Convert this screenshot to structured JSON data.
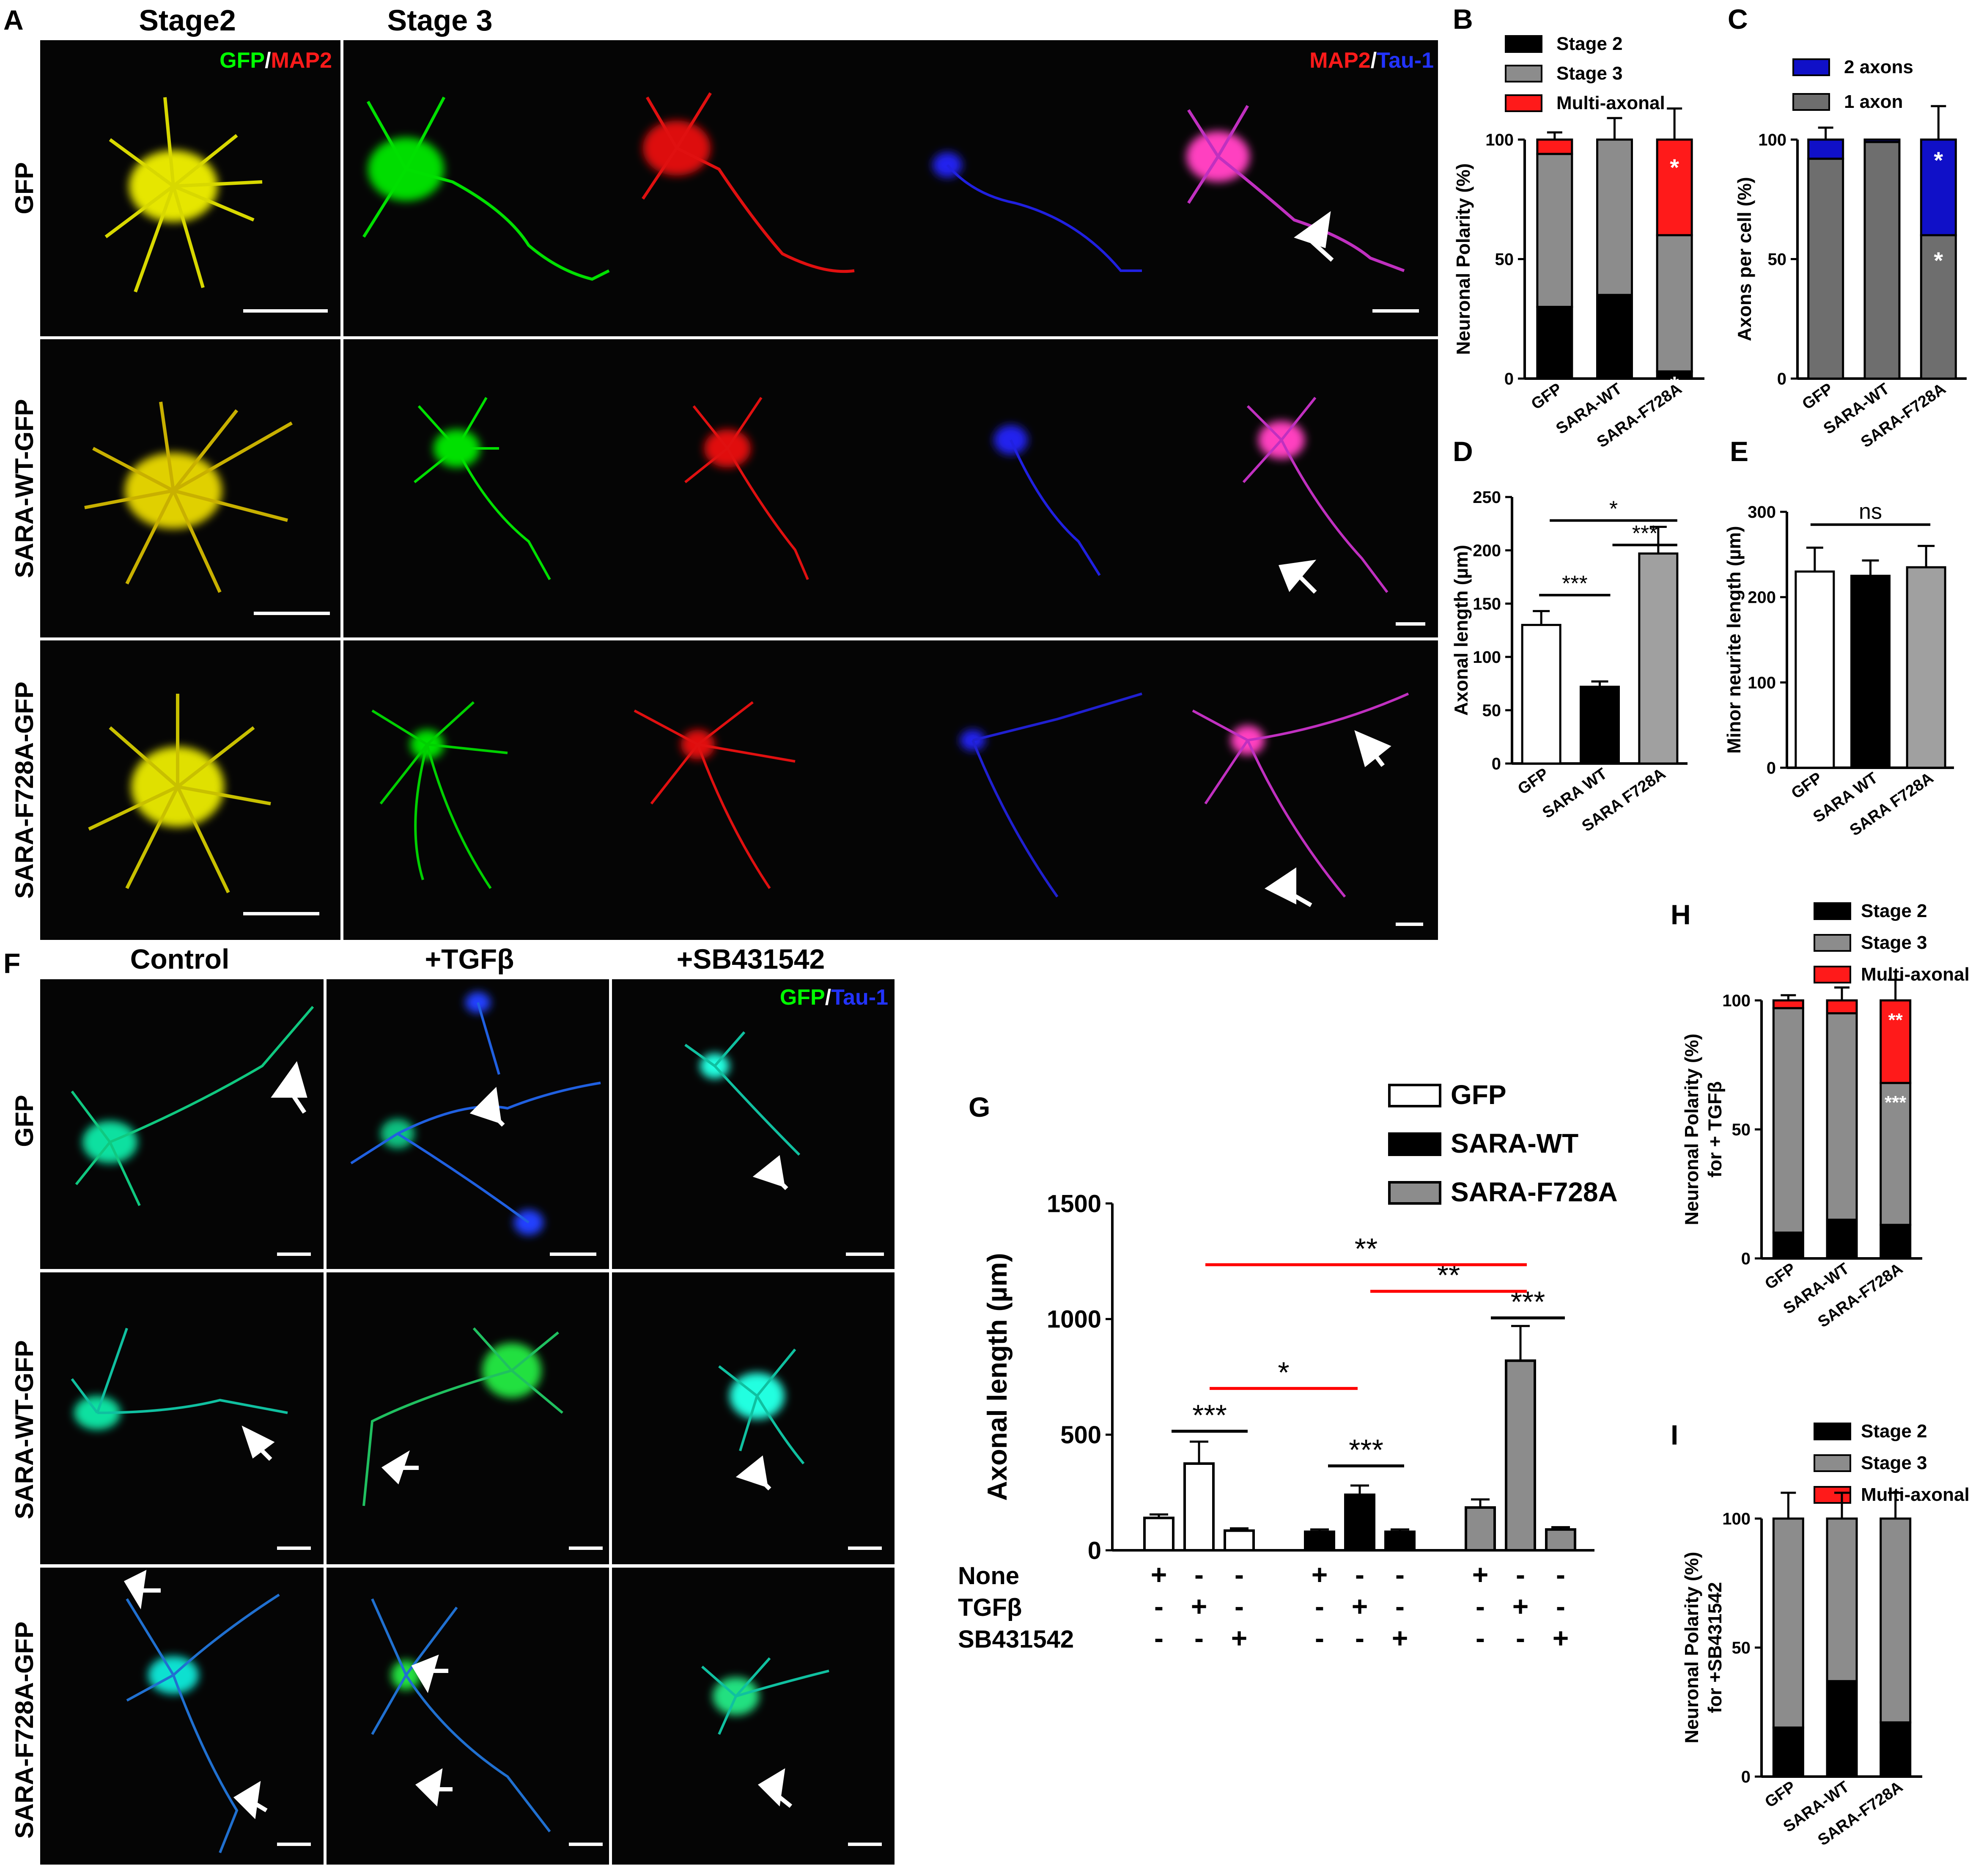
{
  "panel_letters": {
    "A": "A",
    "B": "B",
    "C": "C",
    "D": "D",
    "E": "E",
    "F": "F",
    "G": "G",
    "H": "H",
    "I": "I"
  },
  "panel_a": {
    "col_stage2": "Stage2",
    "col_stage3": "Stage 3",
    "rows": [
      "GFP",
      "SARA-WT-GFP",
      "SARA-F728A-GFP"
    ],
    "stain_left": {
      "a": "GFP",
      "sep": "/",
      "b": "MAP2"
    },
    "stain_right": {
      "a": "MAP2",
      "sep": "/",
      "b": "Tau-1"
    }
  },
  "panel_f": {
    "cols": [
      "Control",
      "+TGFβ",
      "+SB431542"
    ],
    "rows": [
      "GFP",
      "SARA-WT-GFP",
      "SARA-F728A-GFP"
    ],
    "stain": {
      "a": "GFP",
      "sep": "/",
      "b": "Tau-1"
    }
  },
  "colors": {
    "green": "#00ff00",
    "red": "#ff1a1a",
    "blue": "#2233ff",
    "gray": "#8c8c8c",
    "darkgray": "#6e6e6e",
    "black": "#000000",
    "stackblue": "#1010c8"
  },
  "chart_data": [
    {
      "panel": "B",
      "type": "bar",
      "stacked": true,
      "ylabel": "Neuronal Polarity (%)",
      "categories": [
        "GFP",
        "SARA-WT",
        "SARA-F728A"
      ],
      "ylim": [
        0,
        100
      ],
      "yticks": [
        0,
        50,
        100
      ],
      "series": [
        {
          "name": "Stage 2",
          "values": [
            30,
            35,
            3
          ],
          "err": [
            8,
            8,
            0
          ]
        },
        {
          "name": "Stage 3",
          "values": [
            64,
            65,
            57
          ],
          "err": [
            0,
            0,
            0
          ]
        },
        {
          "name": "Multi-axonal",
          "values": [
            6,
            0,
            40
          ],
          "err": [
            0,
            0,
            0
          ]
        }
      ],
      "top_err": [
        3,
        9,
        13
      ],
      "annotations": [
        "*",
        "*"
      ]
    },
    {
      "panel": "C",
      "type": "bar",
      "stacked": true,
      "ylabel": "Axons per cell (%)",
      "categories": [
        "GFP",
        "SARA-WT",
        "SARA-F728A"
      ],
      "ylim": [
        0,
        100
      ],
      "yticks": [
        0,
        50,
        100
      ],
      "series": [
        {
          "name": "1 axon",
          "values": [
            92,
            99,
            60
          ]
        },
        {
          "name": "2 axons",
          "values": [
            8,
            1,
            40
          ]
        }
      ],
      "top_err": [
        5,
        0,
        14
      ],
      "annotations": [
        "*",
        "*"
      ]
    },
    {
      "panel": "D",
      "type": "bar",
      "ylabel": "Axonal length (µm)",
      "categories": [
        "GFP",
        "SARA WT",
        "SARA F728A"
      ],
      "values": [
        130,
        72,
        197
      ],
      "err": [
        13,
        5,
        25
      ],
      "ylim": [
        0,
        250
      ],
      "yticks": [
        0,
        50,
        100,
        150,
        200,
        250
      ],
      "annotations": [
        "*",
        "***",
        "***"
      ]
    },
    {
      "panel": "E",
      "type": "bar",
      "ylabel": "Minor neurite length (µm)",
      "categories": [
        "GFP",
        "SARA WT",
        "SARA F728A"
      ],
      "values": [
        230,
        225,
        235
      ],
      "err": [
        28,
        18,
        25
      ],
      "ylim": [
        0,
        300
      ],
      "yticks": [
        0,
        100,
        200,
        300
      ],
      "annotations": [
        "ns"
      ]
    },
    {
      "panel": "G",
      "type": "bar",
      "ylabel": "Axonal length (µm)",
      "ylim": [
        0,
        1500
      ],
      "yticks": [
        0,
        500,
        1000,
        1500
      ],
      "legend": [
        "GFP",
        "SARA-WT",
        "SARA-F728A"
      ],
      "groups": [
        {
          "name": "GFP",
          "values": [
            140,
            375,
            85
          ],
          "err": [
            15,
            95,
            10
          ]
        },
        {
          "name": "SARA-WT",
          "values": [
            80,
            240,
            80
          ],
          "err": [
            10,
            40,
            10
          ]
        },
        {
          "name": "SARA-F728A",
          "values": [
            185,
            820,
            90
          ],
          "err": [
            35,
            150,
            10
          ]
        }
      ],
      "condition_rows": [
        {
          "label": "None",
          "signs": [
            "+",
            "-",
            "-",
            "+",
            "-",
            "-",
            "+",
            "-",
            "-"
          ]
        },
        {
          "label": "TGFβ",
          "signs": [
            "-",
            "+",
            "-",
            "-",
            "+",
            "-",
            "-",
            "+",
            "-"
          ]
        },
        {
          "label": "SB431542",
          "signs": [
            "-",
            "-",
            "+",
            "-",
            "-",
            "+",
            "-",
            "-",
            "+"
          ]
        }
      ],
      "annotations": [
        "***",
        "*",
        "***",
        "***",
        "**",
        "**"
      ]
    },
    {
      "panel": "H",
      "type": "bar",
      "stacked": true,
      "ylabel": "Neuronal Polarity (%)",
      "ylabel2": "for + TGFβ",
      "categories": [
        "GFP",
        "SARA-WT",
        "SARA-F728A"
      ],
      "ylim": [
        0,
        100
      ],
      "yticks": [
        0,
        50,
        100
      ],
      "series": [
        {
          "name": "Stage 2",
          "values": [
            10,
            15,
            13
          ],
          "err": [
            3,
            5,
            6
          ]
        },
        {
          "name": "Stage 3",
          "values": [
            87,
            80,
            55
          ]
        },
        {
          "name": "Multi-axonal",
          "values": [
            3,
            5,
            32
          ]
        }
      ],
      "top_err": [
        2,
        5,
        8
      ],
      "annotations": [
        "**",
        "***"
      ]
    },
    {
      "panel": "I",
      "type": "bar",
      "stacked": true,
      "ylabel": "Neuronal Polarity (%)",
      "ylabel2": "for +SB431542",
      "categories": [
        "GFP",
        "SARA-WT",
        "SARA-F728A"
      ],
      "ylim": [
        0,
        100
      ],
      "yticks": [
        0,
        50,
        100
      ],
      "series": [
        {
          "name": "Stage 2",
          "values": [
            19,
            37,
            21
          ],
          "err": [
            9,
            9,
            9
          ]
        },
        {
          "name": "Stage 3",
          "values": [
            81,
            63,
            79
          ]
        },
        {
          "name": "Multi-axonal",
          "values": [
            0,
            0,
            0
          ]
        }
      ],
      "top_err": [
        10,
        10,
        10
      ]
    }
  ]
}
